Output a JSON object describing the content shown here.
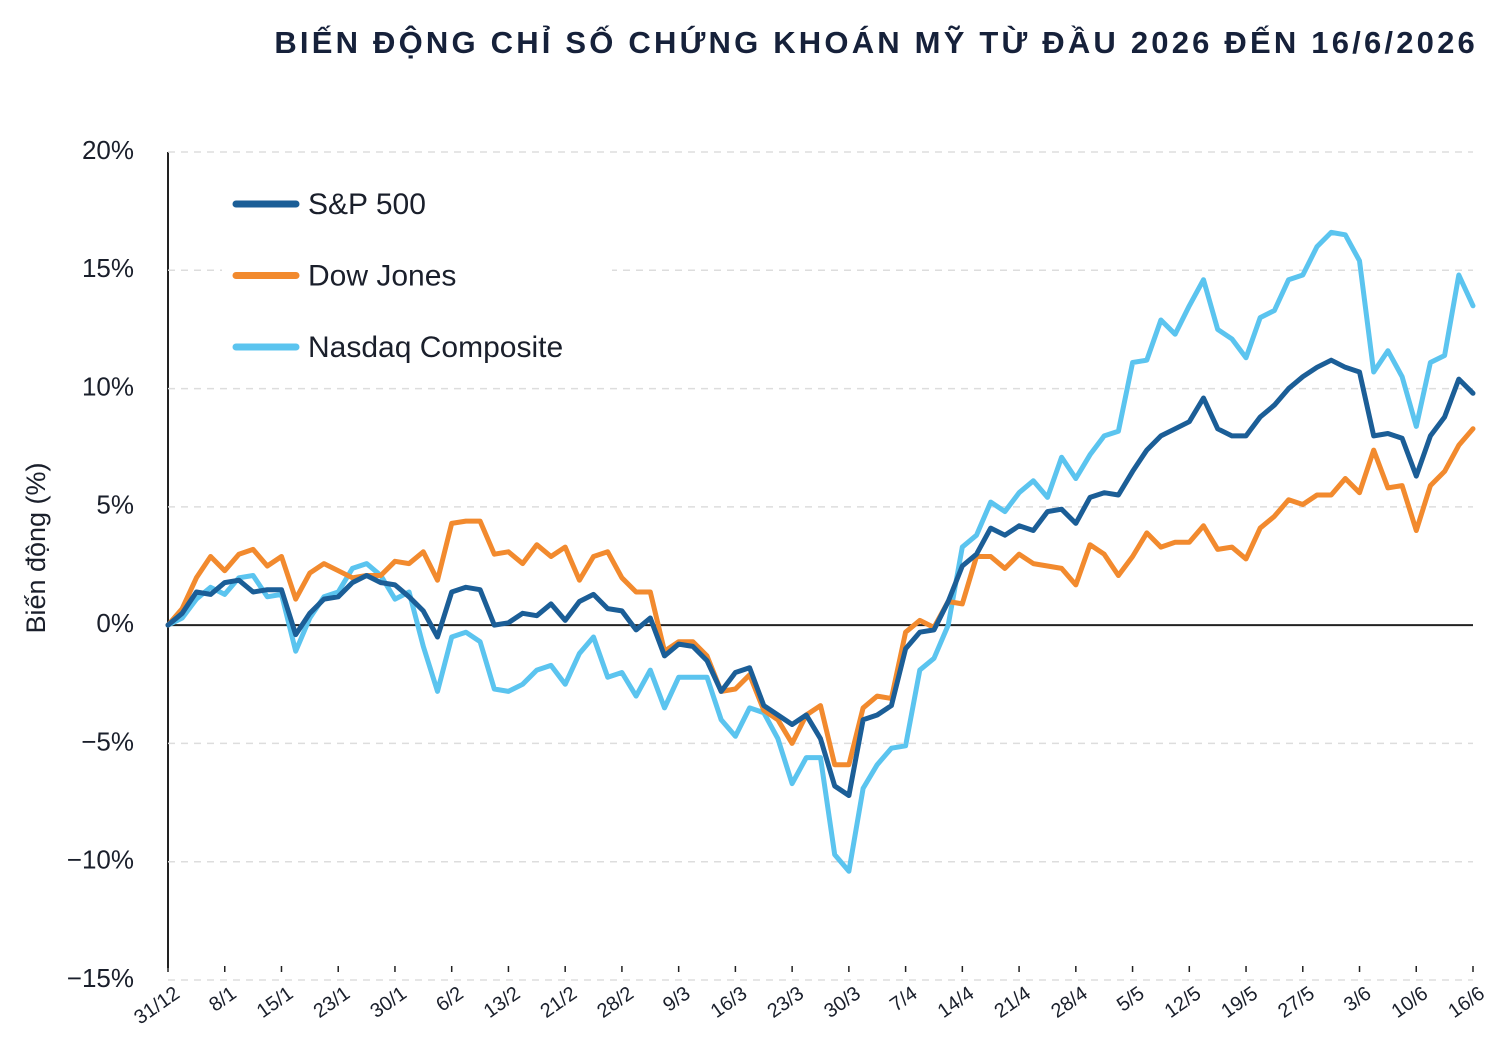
{
  "chart_data": {
    "type": "line",
    "title": "BIẾN ĐỘNG CHỈ SỐ CHỨNG KHOÁN MỸ TỪ ĐẦU 2026 ĐẾN 16/6/2026",
    "y_label": "Biến động (%)",
    "categories": [
      "31/12",
      null,
      null,
      null,
      "8/1",
      null,
      null,
      null,
      "15/1",
      null,
      null,
      null,
      "23/1",
      null,
      null,
      null,
      "30/1",
      null,
      null,
      null,
      "6/2",
      null,
      null,
      null,
      "13/2",
      null,
      null,
      null,
      "21/2",
      null,
      null,
      null,
      "28/2",
      null,
      null,
      null,
      "9/3",
      null,
      null,
      null,
      "16/3",
      null,
      null,
      null,
      "23/3",
      null,
      null,
      null,
      "30/3",
      null,
      null,
      null,
      "7/4",
      null,
      null,
      null,
      "14/4",
      null,
      null,
      null,
      "21/4",
      null,
      null,
      null,
      "28/4",
      null,
      null,
      null,
      "5/5",
      null,
      null,
      null,
      "12/5",
      null,
      null,
      null,
      "19/5",
      null,
      null,
      null,
      "27/5",
      null,
      null,
      null,
      "3/6",
      null,
      null,
      null,
      "10/6",
      null,
      null,
      null,
      "16/6"
    ],
    "series": [
      {
        "name": "S&P 500",
        "color": "#1b5e97",
        "values": [
          0,
          0.5,
          1.4,
          1.3,
          1.8,
          1.9,
          1.4,
          1.5,
          1.5,
          -0.4,
          0.5,
          1.1,
          1.2,
          1.8,
          2.1,
          1.8,
          1.7,
          1.2,
          0.6,
          -0.5,
          1.4,
          1.6,
          1.5,
          0.0,
          0.1,
          0.5,
          0.4,
          0.9,
          0.2,
          1.0,
          1.3,
          0.7,
          0.6,
          -0.2,
          0.3,
          -1.3,
          -0.8,
          -0.9,
          -1.5,
          -2.8,
          -2.0,
          -1.8,
          -3.4,
          -3.8,
          -4.2,
          -3.8,
          -4.8,
          -6.8,
          -7.2,
          -4.0,
          -3.8,
          -3.4,
          -1.0,
          -0.3,
          -0.2,
          1.0,
          2.5,
          3.0,
          4.1,
          3.8,
          4.2,
          4.0,
          4.8,
          4.9,
          4.3,
          5.4,
          5.6,
          5.5,
          6.5,
          7.4,
          8.0,
          8.3,
          8.6,
          9.6,
          8.3,
          8.0,
          8.0,
          8.8,
          9.3,
          10.0,
          10.5,
          10.9,
          11.2,
          10.9,
          10.7,
          8.0,
          8.1,
          7.9,
          6.3,
          8.0,
          8.8,
          10.4,
          9.8
        ]
      },
      {
        "name": "Dow Jones",
        "color": "#f28a2e",
        "values": [
          0,
          0.7,
          2.0,
          2.9,
          2.3,
          3.0,
          3.2,
          2.5,
          2.9,
          1.1,
          2.2,
          2.6,
          2.3,
          2.0,
          2.1,
          2.1,
          2.7,
          2.6,
          3.1,
          1.9,
          4.3,
          4.4,
          4.4,
          3.0,
          3.1,
          2.6,
          3.4,
          2.9,
          3.3,
          1.9,
          2.9,
          3.1,
          2.0,
          1.4,
          1.4,
          -1.1,
          -0.7,
          -0.7,
          -1.3,
          -2.8,
          -2.7,
          -2.1,
          -3.6,
          -4.0,
          -5.0,
          -3.8,
          -3.4,
          -5.9,
          -5.9,
          -3.5,
          -3.0,
          -3.1,
          -0.3,
          0.2,
          -0.1,
          1.0,
          0.9,
          2.9,
          2.9,
          2.4,
          3.0,
          2.6,
          2.5,
          2.4,
          1.7,
          3.4,
          3.0,
          2.1,
          2.9,
          3.9,
          3.3,
          3.5,
          3.5,
          4.2,
          3.2,
          3.3,
          2.8,
          4.1,
          4.6,
          5.3,
          5.1,
          5.5,
          5.5,
          6.2,
          5.6,
          7.4,
          5.8,
          5.9,
          4.0,
          5.9,
          6.5,
          7.6,
          8.3
        ]
      },
      {
        "name": "Nasdaq Composite",
        "color": "#5bc4ef",
        "values": [
          0,
          0.3,
          1.1,
          1.6,
          1.3,
          2.0,
          2.1,
          1.2,
          1.3,
          -1.1,
          0.3,
          1.2,
          1.4,
          2.4,
          2.6,
          2.1,
          1.1,
          1.4,
          -0.9,
          -2.8,
          -0.5,
          -0.3,
          -0.7,
          -2.7,
          -2.8,
          -2.5,
          -1.9,
          -1.7,
          -2.5,
          -1.2,
          -0.5,
          -2.2,
          -2.0,
          -3.0,
          -1.9,
          -3.5,
          -2.2,
          -2.2,
          -2.2,
          -4.0,
          -4.7,
          -3.5,
          -3.7,
          -4.8,
          -6.7,
          -5.6,
          -5.6,
          -9.7,
          -10.4,
          -6.9,
          -5.9,
          -5.2,
          -5.1,
          -1.9,
          -1.4,
          0.0,
          3.3,
          3.8,
          5.2,
          4.8,
          5.6,
          6.1,
          5.4,
          7.1,
          6.2,
          7.2,
          8.0,
          8.2,
          11.1,
          11.2,
          12.9,
          12.3,
          13.5,
          14.6,
          12.5,
          12.1,
          11.3,
          13.0,
          13.3,
          14.6,
          14.8,
          16.0,
          16.6,
          16.5,
          15.4,
          10.7,
          11.6,
          10.5,
          8.4,
          11.1,
          11.4,
          14.8,
          13.5
        ]
      }
    ],
    "ylim": [
      -15,
      20
    ],
    "yticks": [
      {
        "value": -15,
        "label": "−15%"
      },
      {
        "value": -10,
        "label": "−10%"
      },
      {
        "value": -5,
        "label": "−5%"
      },
      {
        "value": 0,
        "label": "0%"
      },
      {
        "value": 5,
        "label": "5%"
      },
      {
        "value": 10,
        "label": "10%"
      },
      {
        "value": 15,
        "label": "15%"
      },
      {
        "value": 20,
        "label": "20%"
      }
    ],
    "grid": true,
    "legend": "top-left"
  }
}
